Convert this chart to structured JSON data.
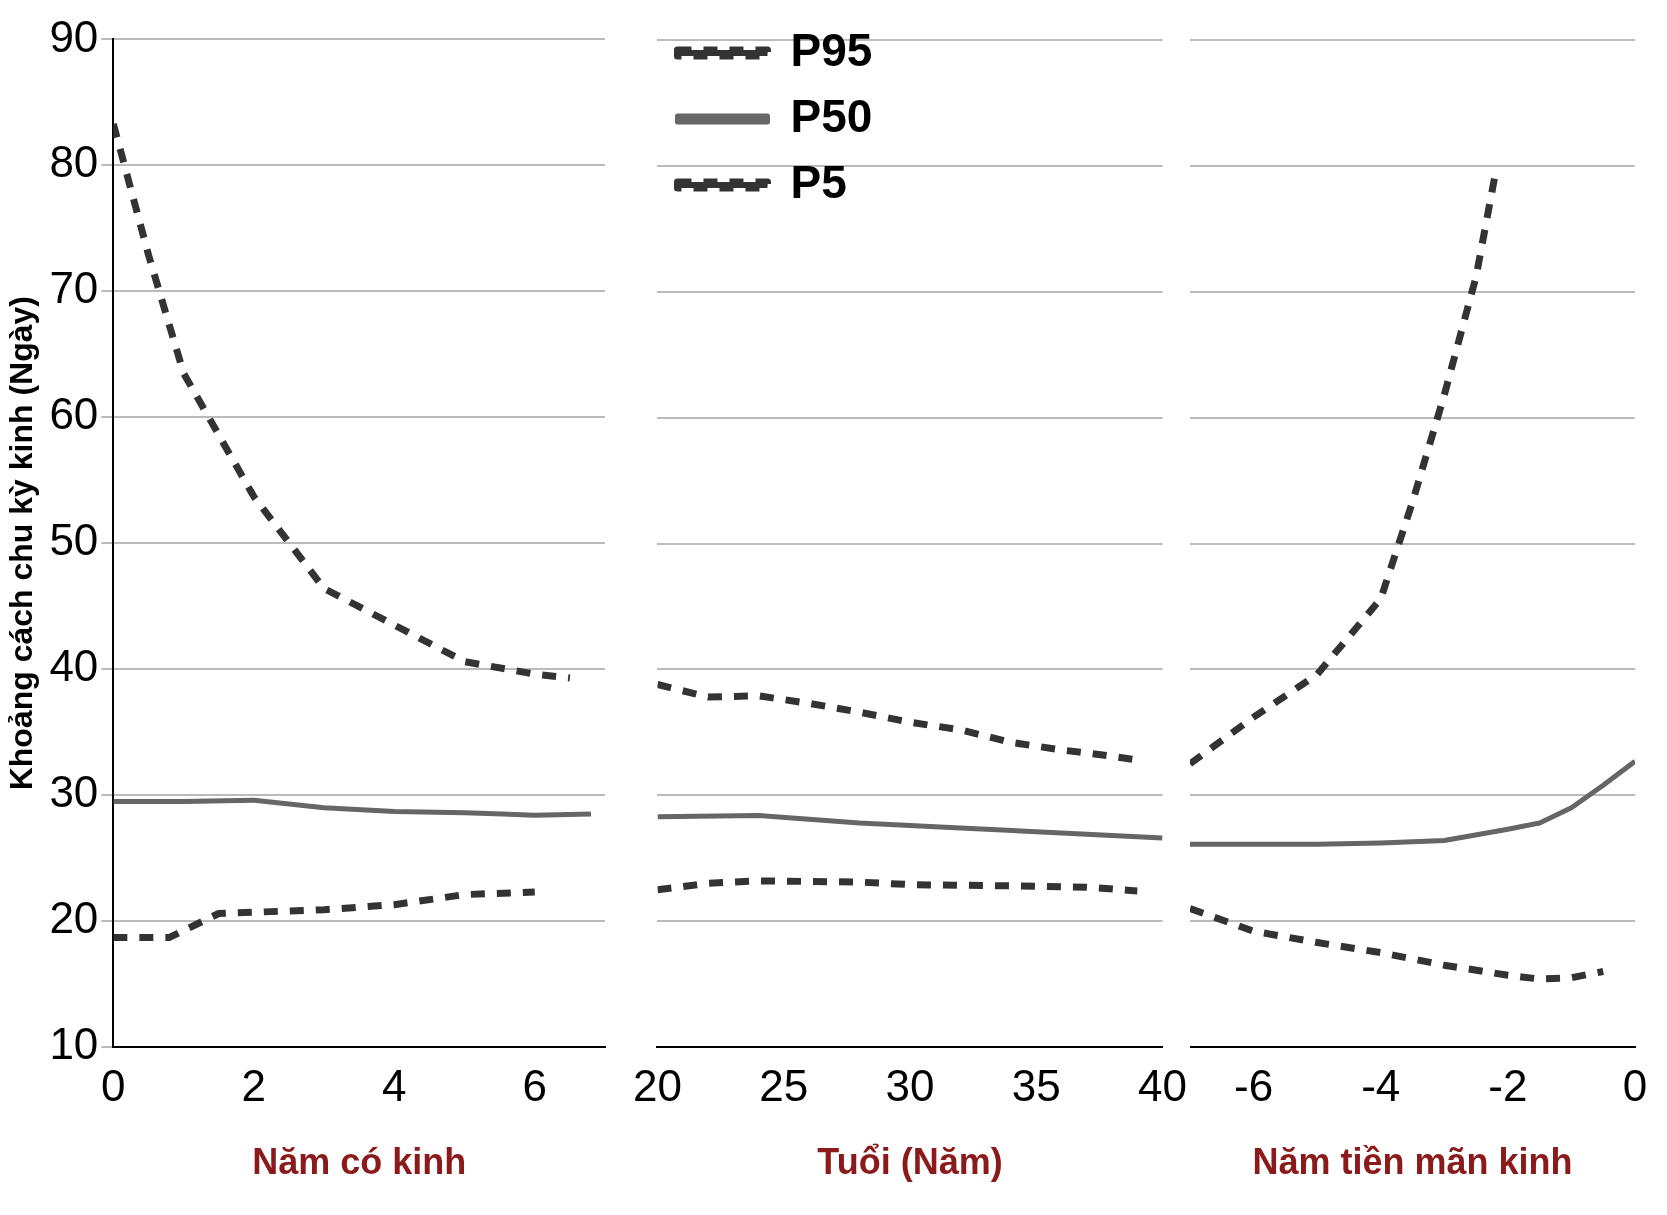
{
  "chart_data": [
    {
      "type": "line",
      "xlabel": "Năm có kinh",
      "ylabel": "Khoảng cách chu kỳ kinh (Ngày)",
      "xlim": [
        0,
        7
      ],
      "xticks": [
        0,
        2,
        4,
        6
      ],
      "ylim": [
        10,
        90
      ],
      "yticks": [
        10,
        20,
        30,
        40,
        50,
        60,
        70,
        80,
        90
      ],
      "grid": "y",
      "legend": false,
      "marker": "none",
      "series": [
        {
          "color": "#333333",
          "line_style": "dashed",
          "x": [
            0,
            0.5,
            1,
            2,
            3,
            4,
            5,
            6,
            6.5
          ],
          "values": [
            83.3,
            72.9,
            63.5,
            53.7,
            46.4,
            43.5,
            40.6,
            39.6,
            39.3
          ]
        },
        {
          "color": "#666666",
          "line_style": "solid",
          "x": [
            0,
            1,
            2,
            3,
            4,
            5,
            6,
            6.8
          ],
          "values": [
            29.5,
            29.5,
            29.6,
            29,
            28.7,
            28.6,
            28.4,
            28.5
          ]
        },
        {
          "color": "#333333",
          "line_style": "dashed",
          "x": [
            0,
            0.8,
            1.5,
            2,
            3,
            4,
            5,
            6
          ],
          "values": [
            18.7,
            18.7,
            20.6,
            20.7,
            20.9,
            21.3,
            22.1,
            22.3
          ]
        }
      ]
    },
    {
      "type": "line",
      "xlabel": "Tuổi (Năm)",
      "xlim": [
        20,
        40
      ],
      "xticks": [
        20,
        25,
        30,
        35,
        40
      ],
      "ylim": [
        10,
        90
      ],
      "yticks": [
        10,
        20,
        30,
        40,
        50,
        60,
        70,
        80,
        90
      ],
      "grid": "y",
      "legend": "top left",
      "marker": "none",
      "tick_labels": "x",
      "series": [
        {
          "name": "P95",
          "color": "#333333",
          "line_style": "dashed",
          "x": [
            20,
            22,
            24,
            26,
            28,
            30,
            32,
            34,
            36,
            38,
            39
          ],
          "values": [
            38.8,
            37.8,
            37.9,
            37.3,
            36.6,
            35.8,
            35.2,
            34.2,
            33.6,
            33.1,
            32.8
          ]
        },
        {
          "name": "P50",
          "color": "#666666",
          "line_style": "solid",
          "x": [
            20,
            24,
            28,
            32,
            36,
            40
          ],
          "values": [
            28.3,
            28.4,
            27.8,
            27.4,
            27.0,
            26.6
          ]
        },
        {
          "name": "P5",
          "color": "#333333",
          "line_style": "dashed",
          "x": [
            20,
            22,
            24,
            28,
            30,
            34,
            37,
            39
          ],
          "values": [
            22.5,
            23,
            23.2,
            23.1,
            22.9,
            22.8,
            22.7,
            22.4
          ]
        }
      ]
    },
    {
      "type": "line",
      "xlabel": "Năm tiền mãn kinh",
      "xlim": [
        -7,
        0
      ],
      "xticks": [
        -6,
        -4,
        -2,
        0
      ],
      "ylim": [
        10,
        90
      ],
      "yticks": [
        10,
        20,
        30,
        40,
        50,
        60,
        70,
        80,
        90
      ],
      "grid": "y",
      "legend": false,
      "marker": "none",
      "tick_labels": "x",
      "series": [
        {
          "color": "#333333",
          "line_style": "dashed",
          "x": [
            -7,
            -6,
            -5,
            -4,
            -3.5,
            -3,
            -2.5,
            -2.2
          ],
          "values": [
            32.5,
            36.2,
            39.6,
            45.6,
            53.3,
            61.8,
            71.2,
            79.3
          ]
        },
        {
          "color": "#666666",
          "line_style": "solid",
          "x": [
            -7,
            -5,
            -4,
            -3,
            -2,
            -1.5,
            -1,
            -0.5,
            0
          ],
          "values": [
            26.1,
            26.1,
            26.2,
            26.4,
            27.3,
            27.8,
            29,
            30.8,
            32.7
          ]
        },
        {
          "color": "#333333",
          "line_style": "dashed",
          "x": [
            -7,
            -6,
            -5,
            -4,
            -3,
            -2,
            -1.5,
            -1,
            -0.5
          ],
          "values": [
            21,
            19.2,
            18.3,
            17.5,
            16.5,
            15.7,
            15.4,
            15.5,
            16
          ]
        }
      ]
    }
  ]
}
